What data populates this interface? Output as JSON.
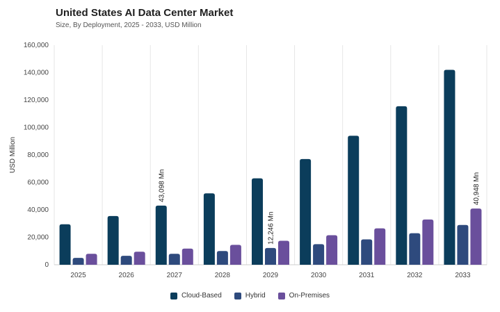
{
  "chart_data": {
    "type": "bar",
    "title": "United States AI Data Center Market",
    "subtitle": "Size, By Deployment, 2025 - 2033, USD Million",
    "ylabel": "USD Million",
    "xlabel": "",
    "ylim": [
      0,
      160000
    ],
    "yticks": [
      "0",
      "20,000",
      "40,000",
      "60,000",
      "80,000",
      "100,000",
      "120,000",
      "140,000",
      "160,000"
    ],
    "categories": [
      "2025",
      "2026",
      "2027",
      "2028",
      "2029",
      "2030",
      "2031",
      "2032",
      "2033"
    ],
    "series": [
      {
        "name": "Cloud-Based",
        "color": "#0b3d5b",
        "values": [
          29500,
          35500,
          43098,
          52000,
          63000,
          77000,
          94000,
          115500,
          142000
        ]
      },
      {
        "name": "Hybrid",
        "color": "#2e4a7d",
        "values": [
          5000,
          6500,
          8000,
          10000,
          12246,
          15000,
          18500,
          23000,
          29000
        ]
      },
      {
        "name": "On-Premises",
        "color": "#6a4f9c",
        "values": [
          8000,
          9500,
          11800,
          14500,
          17500,
          21500,
          26500,
          33000,
          40948
        ]
      }
    ],
    "annotations": [
      {
        "series": 0,
        "category": 2,
        "text": "43,098 Mn"
      },
      {
        "series": 1,
        "category": 4,
        "text": "12,246 Mn"
      },
      {
        "series": 2,
        "category": 8,
        "text": "40,948 Mn"
      }
    ],
    "legend_position": "bottom-center",
    "grid": "vertical"
  }
}
